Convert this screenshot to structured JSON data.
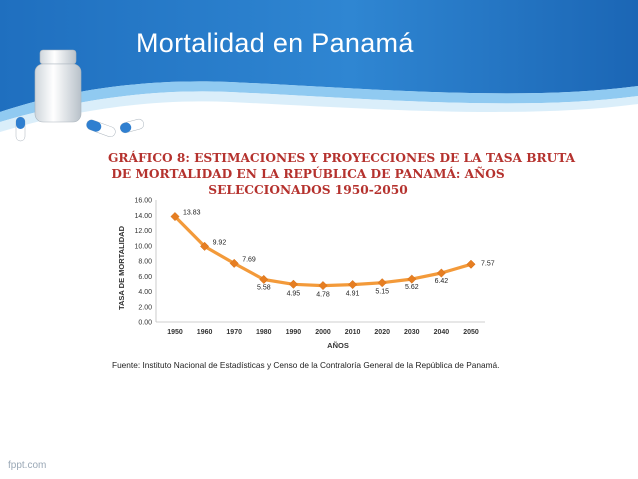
{
  "slide": {
    "title": "Mortalidad en Panamá",
    "footer": "fppt.com",
    "source": "Fuente: Instituto Nacional de Estadísticas y Censo de la Contraloría General de la República de Panamá."
  },
  "colors": {
    "header_blue": "#2a7fcb",
    "header_light": "#5fb0ea",
    "line_orange": "#f39a3a",
    "marker_orange": "#e67e22",
    "title_red": "#b5322e"
  },
  "icons": [
    "pill-bottle-icon",
    "capsule-icon"
  ],
  "chart_data": {
    "type": "line",
    "title": [
      "GRÁFICO 8: ESTIMACIONES Y PROYECCIONES  DE LA TASA BRUTA",
      "DE MORTALIDAD EN LA REPÚBLICA  DE PANAMÁ: AÑOS",
      "SELECCIONADOS 1950-2050"
    ],
    "xlabel": "AÑOS",
    "ylabel": "TASA DE MORTALIDAD",
    "categories": [
      "1950",
      "1960",
      "1970",
      "1980",
      "1990",
      "2000",
      "2010",
      "2020",
      "2030",
      "2040",
      "2050"
    ],
    "values": [
      13.83,
      9.92,
      7.69,
      5.58,
      4.95,
      4.78,
      4.91,
      5.15,
      5.62,
      6.42,
      7.57
    ],
    "data_labels": [
      "13.83",
      "9.92",
      "7.69",
      "5.58",
      "4.95",
      "4.78",
      "4.91",
      "5.15",
      "5.62",
      "6.42",
      "7.57"
    ],
    "yticks": [
      "0.00",
      "2.00",
      "4.00",
      "6.00",
      "8.00",
      "10.00",
      "12.00",
      "14.00",
      "16.00"
    ],
    "ylim": [
      0,
      16
    ],
    "grid": false,
    "legend": "none"
  }
}
